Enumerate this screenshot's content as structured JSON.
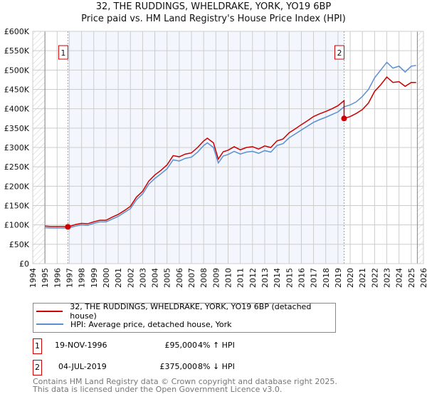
{
  "chart_data": {
    "type": "line",
    "title": "32, THE RUDDINGS, WHELDRAKE, YORK, YO19 6BP",
    "subtitle": "Price paid vs. HM Land Registry's House Price Index (HPI)",
    "xlim": [
      1994,
      2026
    ],
    "ylim": [
      0,
      600000
    ],
    "x_ticks": [
      "1994",
      "1995",
      "1996",
      "1997",
      "1998",
      "1999",
      "2000",
      "2001",
      "2002",
      "2003",
      "2004",
      "2005",
      "2006",
      "2007",
      "2008",
      "2009",
      "2010",
      "2011",
      "2012",
      "2013",
      "2014",
      "2015",
      "2016",
      "2017",
      "2018",
      "2019",
      "2020",
      "2021",
      "2022",
      "2023",
      "2024",
      "2025",
      "2026"
    ],
    "y_ticks": [
      {
        "v": 0,
        "label": "£0"
      },
      {
        "v": 50000,
        "label": "£50K"
      },
      {
        "v": 100000,
        "label": "£100K"
      },
      {
        "v": 150000,
        "label": "£150K"
      },
      {
        "v": 200000,
        "label": "£200K"
      },
      {
        "v": 250000,
        "label": "£250K"
      },
      {
        "v": 300000,
        "label": "£300K"
      },
      {
        "v": 350000,
        "label": "£350K"
      },
      {
        "v": 400000,
        "label": "£400K"
      },
      {
        "v": 450000,
        "label": "£450K"
      },
      {
        "v": 500000,
        "label": "£500K"
      },
      {
        "v": 550000,
        "label": "£550K"
      },
      {
        "v": 600000,
        "label": "£600K"
      }
    ],
    "grid": true,
    "series": [
      {
        "name": "32, THE RUDDINGS, WHELDRAKE, YORK, YO19 6BP (detached house)",
        "color": "#cc0000",
        "x": [
          1995,
          1995.5,
          1996,
          1996.5,
          1996.9,
          1997.5,
          1998,
          1998.5,
          1999,
          1999.5,
          2000,
          2000.5,
          2001,
          2001.5,
          2002,
          2002.5,
          2003,
          2003.5,
          2004,
          2004.5,
          2005,
          2005.5,
          2006,
          2006.5,
          2007,
          2007.5,
          2008,
          2008.3,
          2008.8,
          2009.2,
          2009.6,
          2010,
          2010.5,
          2011,
          2011.5,
          2012,
          2012.5,
          2013,
          2013.5,
          2014,
          2014.5,
          2015,
          2015.5,
          2016,
          2016.5,
          2017,
          2017.5,
          2018,
          2018.5,
          2019,
          2019.5,
          2019.5,
          2020,
          2020.5,
          2021,
          2021.5,
          2022,
          2022.5,
          2023,
          2023.5,
          2024,
          2024.5,
          2025,
          2025.4
        ],
        "values": [
          97000,
          96000,
          96000,
          96000,
          95000,
          101000,
          104000,
          103000,
          108000,
          112000,
          112000,
          120000,
          127000,
          137000,
          148000,
          172000,
          187000,
          213000,
          229000,
          241000,
          255000,
          279000,
          276000,
          283000,
          286000,
          300000,
          317000,
          324000,
          312000,
          270000,
          289000,
          293000,
          302000,
          294000,
          300000,
          302000,
          296000,
          304000,
          300000,
          317000,
          322000,
          338000,
          348000,
          359000,
          369000,
          380000,
          387000,
          393000,
          400000,
          408000,
          421000,
          375000,
          380000,
          388000,
          398000,
          415000,
          445000,
          462000,
          482000,
          468000,
          470000,
          458000,
          468000,
          468000
        ]
      },
      {
        "name": "HPI: Average price, detached house, York",
        "color": "#5b8fd0",
        "x": [
          1995,
          1995.5,
          1996,
          1996.5,
          1996.9,
          1997.5,
          1998,
          1998.5,
          1999,
          1999.5,
          2000,
          2000.5,
          2001,
          2001.5,
          2002,
          2002.5,
          2003,
          2003.5,
          2004,
          2004.5,
          2005,
          2005.5,
          2006,
          2006.5,
          2007,
          2007.5,
          2008,
          2008.3,
          2008.8,
          2009.2,
          2009.6,
          2010,
          2010.5,
          2011,
          2011.5,
          2012,
          2012.5,
          2013,
          2013.5,
          2014,
          2014.5,
          2015,
          2015.5,
          2016,
          2016.5,
          2017,
          2017.5,
          2018,
          2018.5,
          2019,
          2019.5,
          2020,
          2020.5,
          2021,
          2021.5,
          2022,
          2022.5,
          2023,
          2023.5,
          2024,
          2024.5,
          2025,
          2025.4
        ],
        "values": [
          93000,
          92000,
          92000,
          92000,
          91500,
          97000,
          100000,
          99000,
          104000,
          108000,
          108000,
          115000,
          122000,
          132000,
          142000,
          165000,
          180000,
          205000,
          220000,
          232000,
          245000,
          268000,
          265000,
          272000,
          275000,
          288000,
          305000,
          312000,
          300000,
          260000,
          278000,
          282000,
          290000,
          283000,
          288000,
          290000,
          285000,
          292000,
          288000,
          305000,
          310000,
          325000,
          335000,
          345000,
          355000,
          365000,
          372000,
          378000,
          385000,
          392000,
          405000,
          410000,
          418000,
          432000,
          450000,
          480000,
          500000,
          520000,
          505000,
          510000,
          495000,
          510000,
          512000
        ]
      }
    ],
    "sales": [
      {
        "id": "1",
        "year": 1996.88,
        "value": 95000,
        "date": "19-NOV-1996",
        "price": "£95,000",
        "hpi_diff": "4% ↑ HPI"
      },
      {
        "id": "2",
        "year": 2019.5,
        "value": 375000,
        "date": "04-JUL-2019",
        "price": "£375,000",
        "hpi_diff": "8% ↓ HPI"
      }
    ],
    "shaded_range": [
      1996.88,
      2019.5
    ],
    "hatched_ranges": [
      [
        1994,
        1995
      ],
      [
        2025.5,
        2026
      ]
    ],
    "legend_placement": "below"
  },
  "footer": {
    "line1": "Contains HM Land Registry data © Crown copyright and database right 2025.",
    "line2": "This data is licensed under the Open Government Licence v3.0."
  }
}
